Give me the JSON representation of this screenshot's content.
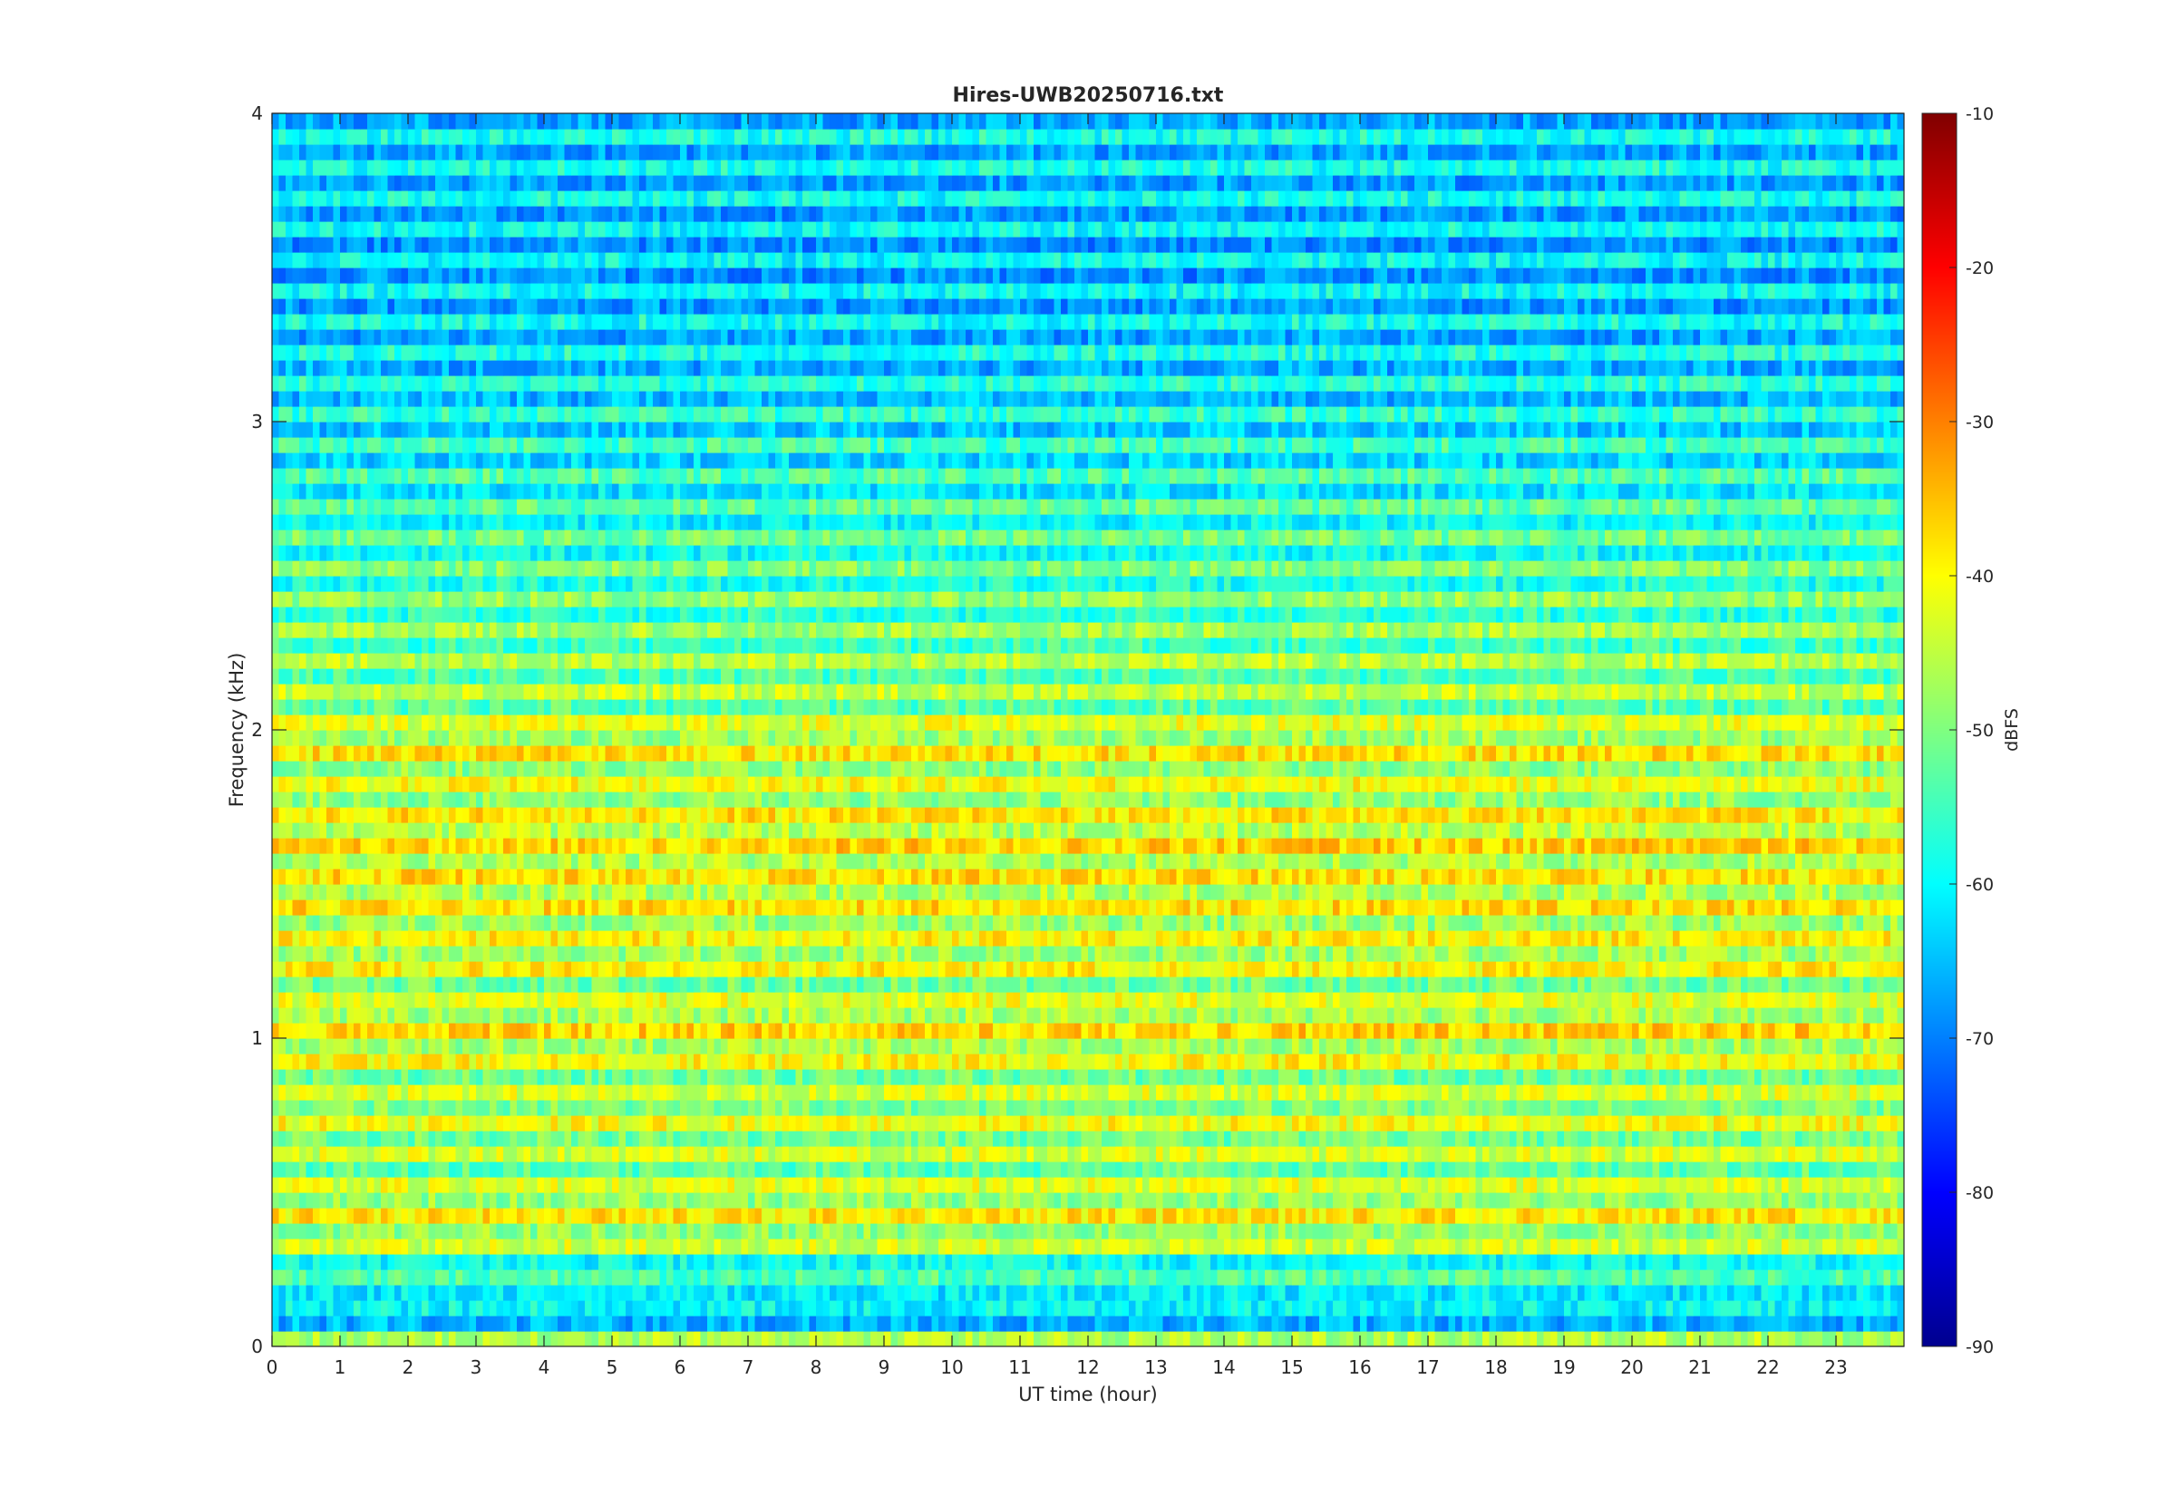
{
  "chart_data": {
    "type": "heatmap",
    "title": "Hires-UWB20250716.txt",
    "xlabel": "UT time (hour)",
    "ylabel": "Frequency (kHz)",
    "colorbar_label": "dBFS",
    "colormap": "jet",
    "xlim": [
      0,
      24
    ],
    "ylim": [
      0,
      4
    ],
    "clim": [
      -90,
      -10
    ],
    "x_ticks": [
      0,
      1,
      2,
      3,
      4,
      5,
      6,
      7,
      8,
      9,
      10,
      11,
      12,
      13,
      14,
      15,
      16,
      17,
      18,
      19,
      20,
      21,
      22,
      23
    ],
    "y_ticks": [
      0,
      1,
      2,
      3,
      4
    ],
    "colorbar_ticks": [
      -90,
      -80,
      -70,
      -60,
      -50,
      -40,
      -30,
      -20,
      -10
    ],
    "frequency_bands_kHz": [
      {
        "f": 0.05,
        "level": -50
      },
      {
        "f": 0.1,
        "level": -72
      },
      {
        "f": 0.15,
        "level": -56
      },
      {
        "f": 0.25,
        "level": -58
      },
      {
        "f": 0.35,
        "level": -44
      },
      {
        "f": 0.45,
        "level": -42
      },
      {
        "f": 0.55,
        "level": -48
      },
      {
        "f": 0.65,
        "level": -47
      },
      {
        "f": 0.75,
        "level": -44
      },
      {
        "f": 0.85,
        "level": -48
      },
      {
        "f": 0.95,
        "level": -43
      },
      {
        "f": 1.05,
        "level": -40
      },
      {
        "f": 1.15,
        "level": -48
      },
      {
        "f": 1.25,
        "level": -42
      },
      {
        "f": 1.35,
        "level": -44
      },
      {
        "f": 1.45,
        "level": -41
      },
      {
        "f": 1.55,
        "level": -42
      },
      {
        "f": 1.65,
        "level": -40
      },
      {
        "f": 1.75,
        "level": -43
      },
      {
        "f": 1.85,
        "level": -45
      },
      {
        "f": 1.95,
        "level": -41
      },
      {
        "f": 2.05,
        "level": -48
      },
      {
        "f": 2.25,
        "level": -50
      },
      {
        "f": 2.55,
        "level": -54
      },
      {
        "f": 3.0,
        "level": -60
      },
      {
        "f": 3.5,
        "level": -64
      },
      {
        "f": 3.9,
        "level": -62
      }
    ]
  }
}
